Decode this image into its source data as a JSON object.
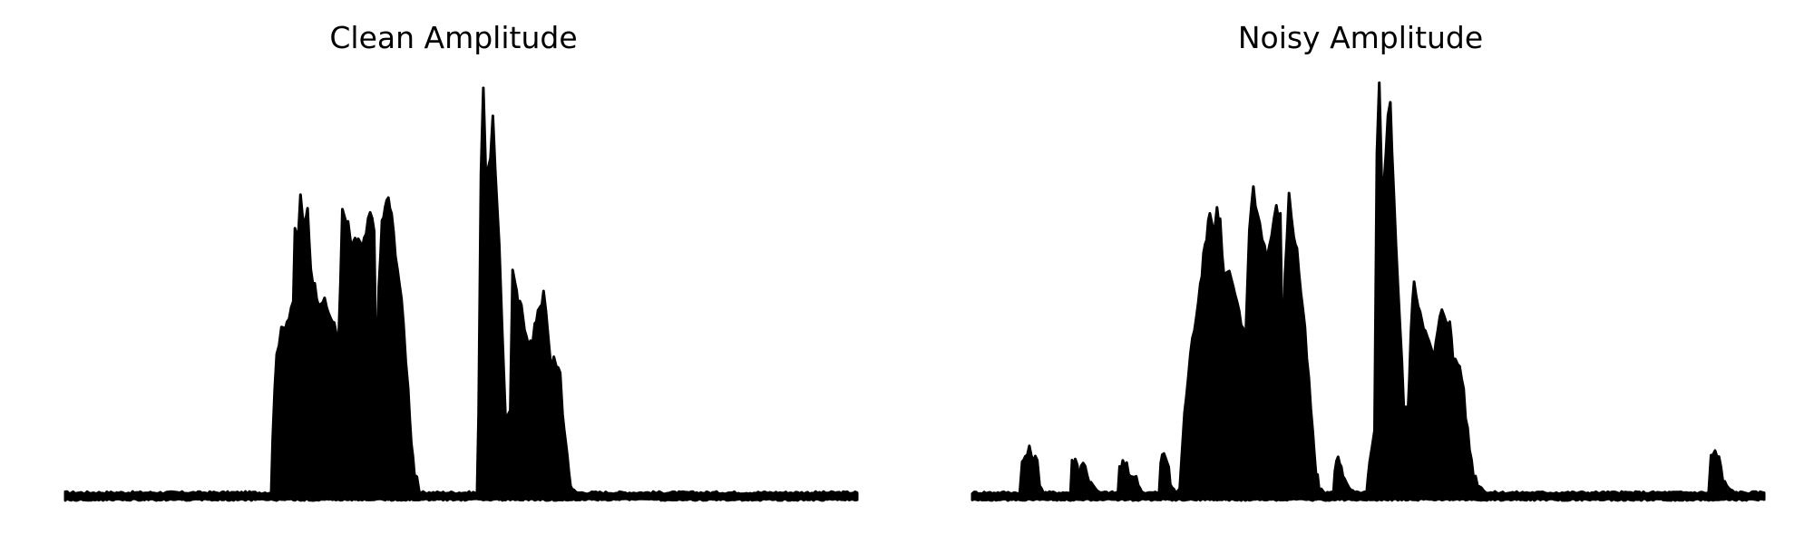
{
  "chart_data": [
    {
      "type": "area",
      "title": "Clean Amplitude",
      "xlabel": "",
      "ylabel": "",
      "axes_visible": false,
      "grid": false,
      "color": "#000000",
      "xlim": [
        0,
        1
      ],
      "ylim": [
        0,
        1
      ],
      "envelope": [
        [
          0.0,
          0.01
        ],
        [
          0.26,
          0.01
        ],
        [
          0.262,
          0.15
        ],
        [
          0.267,
          0.36
        ],
        [
          0.273,
          0.4
        ],
        [
          0.28,
          0.43
        ],
        [
          0.288,
          0.48
        ],
        [
          0.29,
          0.64
        ],
        [
          0.294,
          0.63
        ],
        [
          0.297,
          0.73
        ],
        [
          0.302,
          0.65
        ],
        [
          0.306,
          0.7
        ],
        [
          0.31,
          0.56
        ],
        [
          0.315,
          0.51
        ],
        [
          0.32,
          0.48
        ],
        [
          0.325,
          0.48
        ],
        [
          0.33,
          0.46
        ],
        [
          0.335,
          0.44
        ],
        [
          0.342,
          0.4
        ],
        [
          0.345,
          0.38
        ],
        [
          0.35,
          0.69
        ],
        [
          0.357,
          0.66
        ],
        [
          0.362,
          0.6
        ],
        [
          0.366,
          0.62
        ],
        [
          0.37,
          0.63
        ],
        [
          0.375,
          0.6
        ],
        [
          0.38,
          0.64
        ],
        [
          0.385,
          0.69
        ],
        [
          0.39,
          0.65
        ],
        [
          0.393,
          0.27
        ],
        [
          0.396,
          0.5
        ],
        [
          0.4,
          0.67
        ],
        [
          0.404,
          0.7
        ],
        [
          0.408,
          0.73
        ],
        [
          0.412,
          0.68
        ],
        [
          0.417,
          0.6
        ],
        [
          0.422,
          0.52
        ],
        [
          0.427,
          0.42
        ],
        [
          0.433,
          0.26
        ],
        [
          0.437,
          0.14
        ],
        [
          0.441,
          0.06
        ],
        [
          0.447,
          0.01
        ],
        [
          0.52,
          0.01
        ],
        [
          0.522,
          0.19
        ],
        [
          0.525,
          0.8
        ],
        [
          0.528,
          1.0
        ],
        [
          0.531,
          0.8
        ],
        [
          0.537,
          0.81
        ],
        [
          0.54,
          0.94
        ],
        [
          0.543,
          0.79
        ],
        [
          0.548,
          0.6
        ],
        [
          0.552,
          0.4
        ],
        [
          0.556,
          0.2
        ],
        [
          0.558,
          0.19
        ],
        [
          0.562,
          0.22
        ],
        [
          0.565,
          0.55
        ],
        [
          0.568,
          0.51
        ],
        [
          0.572,
          0.47
        ],
        [
          0.576,
          0.46
        ],
        [
          0.58,
          0.42
        ],
        [
          0.585,
          0.38
        ],
        [
          0.59,
          0.37
        ],
        [
          0.593,
          0.41
        ],
        [
          0.597,
          0.46
        ],
        [
          0.6,
          0.47
        ],
        [
          0.604,
          0.49
        ],
        [
          0.607,
          0.45
        ],
        [
          0.61,
          0.38
        ],
        [
          0.613,
          0.32
        ],
        [
          0.617,
          0.34
        ],
        [
          0.62,
          0.33
        ],
        [
          0.625,
          0.29
        ],
        [
          0.628,
          0.2
        ],
        [
          0.632,
          0.14
        ],
        [
          0.636,
          0.06
        ],
        [
          0.64,
          0.02
        ],
        [
          0.645,
          0.01
        ],
        [
          1.0,
          0.01
        ]
      ]
    },
    {
      "type": "area",
      "title": "Noisy Amplitude",
      "xlabel": "",
      "ylabel": "",
      "axes_visible": false,
      "grid": false,
      "color": "#000000",
      "xlim": [
        0,
        1
      ],
      "ylim": [
        0,
        1
      ],
      "envelope": [
        [
          0.0,
          0.01
        ],
        [
          0.06,
          0.01
        ],
        [
          0.063,
          0.08
        ],
        [
          0.067,
          0.1
        ],
        [
          0.072,
          0.11
        ],
        [
          0.077,
          0.1
        ],
        [
          0.082,
          0.08
        ],
        [
          0.085,
          0.03
        ],
        [
          0.09,
          0.01
        ],
        [
          0.124,
          0.01
        ],
        [
          0.126,
          0.08
        ],
        [
          0.13,
          0.09
        ],
        [
          0.135,
          0.06
        ],
        [
          0.14,
          0.09
        ],
        [
          0.145,
          0.05
        ],
        [
          0.15,
          0.04
        ],
        [
          0.155,
          0.02
        ],
        [
          0.16,
          0.01
        ],
        [
          0.184,
          0.01
        ],
        [
          0.186,
          0.07
        ],
        [
          0.19,
          0.08
        ],
        [
          0.195,
          0.07
        ],
        [
          0.2,
          0.05
        ],
        [
          0.203,
          0.06
        ],
        [
          0.207,
          0.04
        ],
        [
          0.212,
          0.02
        ],
        [
          0.216,
          0.01
        ],
        [
          0.236,
          0.01
        ],
        [
          0.238,
          0.08
        ],
        [
          0.242,
          0.11
        ],
        [
          0.246,
          0.09
        ],
        [
          0.25,
          0.03
        ],
        [
          0.257,
          0.01
        ],
        [
          0.262,
          0.02
        ],
        [
          0.268,
          0.2
        ],
        [
          0.273,
          0.3
        ],
        [
          0.278,
          0.38
        ],
        [
          0.283,
          0.45
        ],
        [
          0.288,
          0.52
        ],
        [
          0.292,
          0.58
        ],
        [
          0.296,
          0.64
        ],
        [
          0.3,
          0.7
        ],
        [
          0.305,
          0.64
        ],
        [
          0.309,
          0.7
        ],
        [
          0.313,
          0.67
        ],
        [
          0.318,
          0.53
        ],
        [
          0.322,
          0.55
        ],
        [
          0.327,
          0.53
        ],
        [
          0.332,
          0.48
        ],
        [
          0.337,
          0.45
        ],
        [
          0.342,
          0.4
        ],
        [
          0.345,
          0.38
        ],
        [
          0.35,
          0.66
        ],
        [
          0.355,
          0.75
        ],
        [
          0.36,
          0.69
        ],
        [
          0.366,
          0.64
        ],
        [
          0.372,
          0.58
        ],
        [
          0.378,
          0.64
        ],
        [
          0.384,
          0.7
        ],
        [
          0.389,
          0.68
        ],
        [
          0.392,
          0.32
        ],
        [
          0.395,
          0.55
        ],
        [
          0.4,
          0.73
        ],
        [
          0.406,
          0.64
        ],
        [
          0.41,
          0.6
        ],
        [
          0.415,
          0.5
        ],
        [
          0.42,
          0.4
        ],
        [
          0.425,
          0.28
        ],
        [
          0.43,
          0.15
        ],
        [
          0.434,
          0.06
        ],
        [
          0.438,
          0.02
        ],
        [
          0.446,
          0.01
        ],
        [
          0.456,
          0.01
        ],
        [
          0.458,
          0.06
        ],
        [
          0.462,
          0.1
        ],
        [
          0.466,
          0.08
        ],
        [
          0.47,
          0.04
        ],
        [
          0.476,
          0.02
        ],
        [
          0.483,
          0.01
        ],
        [
          0.498,
          0.01
        ],
        [
          0.502,
          0.08
        ],
        [
          0.508,
          0.15
        ],
        [
          0.511,
          0.83
        ],
        [
          0.514,
          1.0
        ],
        [
          0.517,
          0.78
        ],
        [
          0.52,
          0.78
        ],
        [
          0.525,
          0.92
        ],
        [
          0.528,
          0.96
        ],
        [
          0.53,
          0.85
        ],
        [
          0.535,
          0.62
        ],
        [
          0.54,
          0.42
        ],
        [
          0.545,
          0.22
        ],
        [
          0.55,
          0.2
        ],
        [
          0.554,
          0.4
        ],
        [
          0.558,
          0.53
        ],
        [
          0.563,
          0.47
        ],
        [
          0.568,
          0.44
        ],
        [
          0.572,
          0.4
        ],
        [
          0.577,
          0.37
        ],
        [
          0.583,
          0.34
        ],
        [
          0.588,
          0.4
        ],
        [
          0.593,
          0.46
        ],
        [
          0.598,
          0.44
        ],
        [
          0.603,
          0.42
        ],
        [
          0.607,
          0.34
        ],
        [
          0.613,
          0.33
        ],
        [
          0.618,
          0.3
        ],
        [
          0.623,
          0.2
        ],
        [
          0.628,
          0.12
        ],
        [
          0.633,
          0.06
        ],
        [
          0.638,
          0.03
        ],
        [
          0.65,
          0.01
        ],
        [
          0.93,
          0.01
        ],
        [
          0.933,
          0.1
        ],
        [
          0.938,
          0.11
        ],
        [
          0.943,
          0.09
        ],
        [
          0.948,
          0.04
        ],
        [
          0.955,
          0.02
        ],
        [
          0.965,
          0.01
        ],
        [
          1.0,
          0.01
        ]
      ]
    }
  ]
}
